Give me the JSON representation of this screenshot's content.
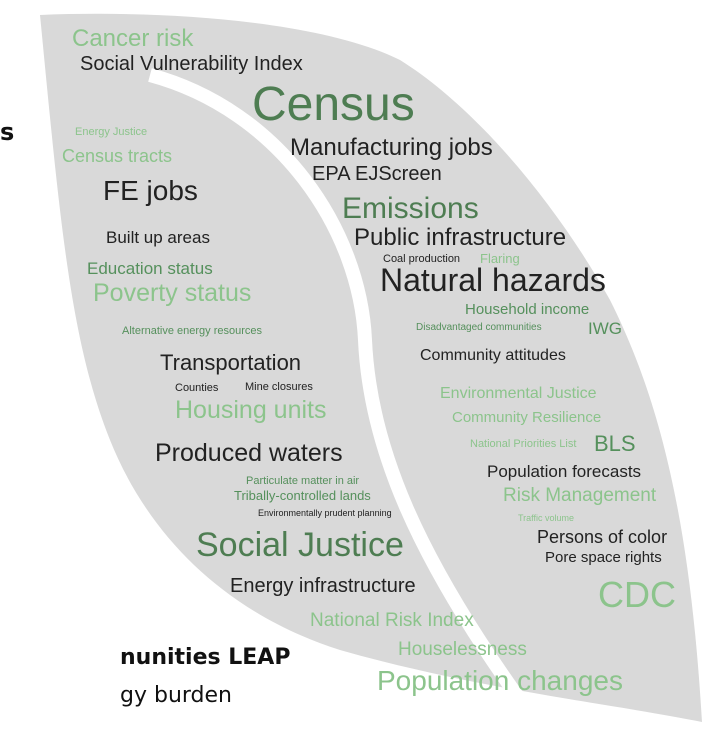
{
  "words": [
    "Cancer risk",
    "Social Vulnerability Index",
    "Census",
    "Energy Justice",
    "Manufacturing jobs",
    "Census tracts",
    "EPA EJScreen",
    "FE jobs",
    "Emissions",
    "Built up areas",
    "Public infrastructure",
    "Coal production",
    "Flaring",
    "Education status",
    "Natural hazards",
    "Poverty status",
    "Household income",
    "Alternative energy resources",
    "Disadvantaged communities",
    "IWG",
    "Community attitudes",
    "Transportation",
    "Counties",
    "Mine closures",
    "Housing units",
    "Environmental Justice",
    "Community Resilience",
    "Produced waters",
    "National Priorities List",
    "BLS",
    "Population forecasts",
    "Particulate matter in air",
    "Tribally-controlled lands",
    "Risk Management",
    "Environmentally prudent planning",
    "Traffic volume",
    "Persons of color",
    "Social Justice",
    "Pore space rights",
    "Energy infrastructure",
    "CDC",
    "National Risk Index",
    "Houselessness",
    "Population changes"
  ],
  "fragments": [
    "s",
    "nunities LEAP",
    "gy burden"
  ]
}
